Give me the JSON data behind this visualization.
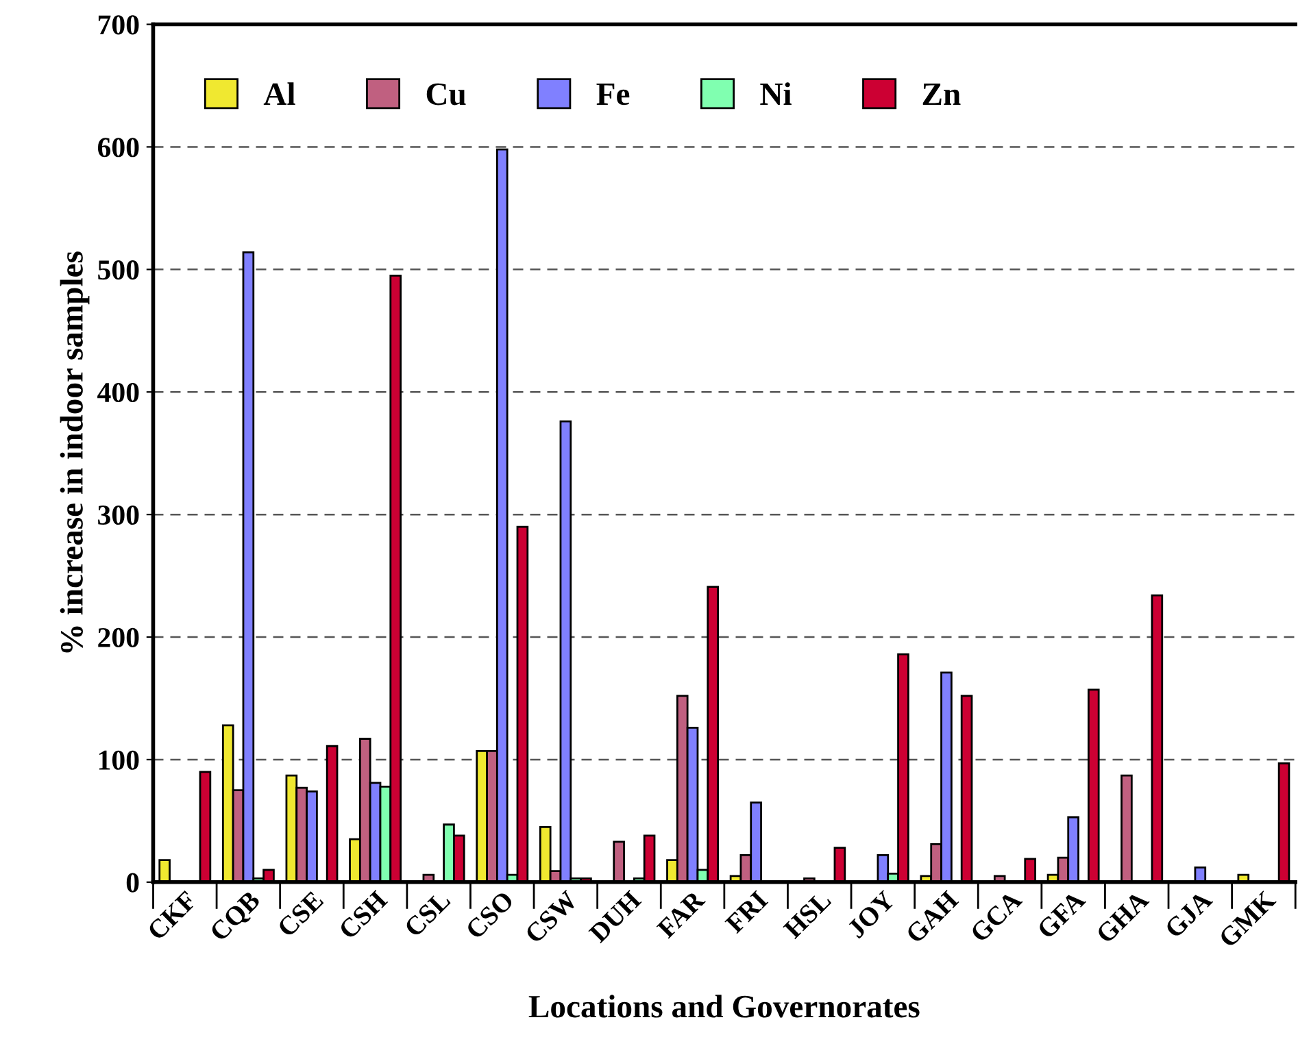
{
  "chart_data": {
    "type": "bar",
    "xlabel": "Locations and Governorates",
    "ylabel": "% increase in indoor samples",
    "categories": [
      "CKF",
      "CQB",
      "CSE",
      "CSH",
      "CSL",
      "CSO",
      "CSW",
      "DUH",
      "FAR",
      "FRI",
      "HSL",
      "JOY",
      "GAH",
      "GCA",
      "GFA",
      "GHA",
      "GJA",
      "GMK"
    ],
    "series": [
      {
        "name": "Al",
        "color": "#f0e830",
        "values": [
          18,
          128,
          87,
          35,
          null,
          107,
          45,
          null,
          18,
          5,
          null,
          null,
          5,
          null,
          6,
          null,
          null,
          6
        ]
      },
      {
        "name": "Cu",
        "color": "#c06080",
        "values": [
          null,
          75,
          77,
          117,
          6,
          107,
          9,
          33,
          152,
          22,
          3,
          null,
          31,
          5,
          20,
          87,
          null,
          null
        ]
      },
      {
        "name": "Fe",
        "color": "#8080ff",
        "values": [
          null,
          514,
          74,
          81,
          null,
          598,
          376,
          null,
          126,
          65,
          null,
          22,
          171,
          null,
          53,
          null,
          12,
          null
        ]
      },
      {
        "name": "Ni",
        "color": "#80ffb0",
        "values": [
          null,
          3,
          null,
          78,
          47,
          6,
          3,
          3,
          10,
          null,
          null,
          7,
          null,
          null,
          null,
          null,
          null,
          null
        ]
      },
      {
        "name": "Zn",
        "color": "#cc0033",
        "values": [
          90,
          10,
          111,
          495,
          38,
          290,
          3,
          38,
          241,
          null,
          28,
          186,
          152,
          19,
          157,
          234,
          null,
          97
        ]
      }
    ],
    "ylim": [
      0,
      700
    ],
    "yticks": [
      0,
      100,
      200,
      300,
      400,
      500,
      600,
      700
    ],
    "grid": "y",
    "legend": "top left"
  }
}
